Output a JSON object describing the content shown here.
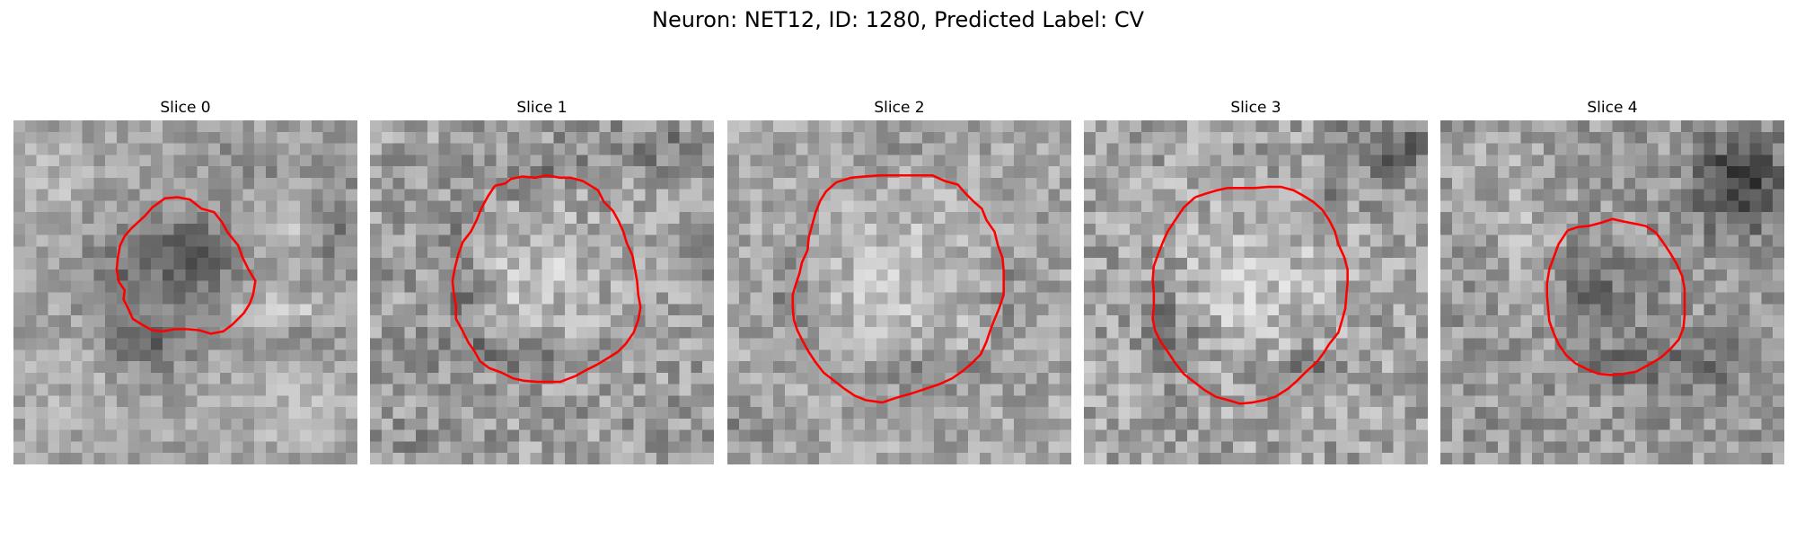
{
  "figure": {
    "title": "Neuron: NET12, ID: 1280, Predicted Label: CV"
  },
  "colors": {
    "background": "#ffffff",
    "contour": "#ff0000",
    "colormap": "gray"
  },
  "panels": [
    {
      "title": "Slice 0"
    },
    {
      "title": "Slice 1"
    },
    {
      "title": "Slice 2"
    },
    {
      "title": "Slice 3"
    },
    {
      "title": "Slice 4"
    }
  ]
}
